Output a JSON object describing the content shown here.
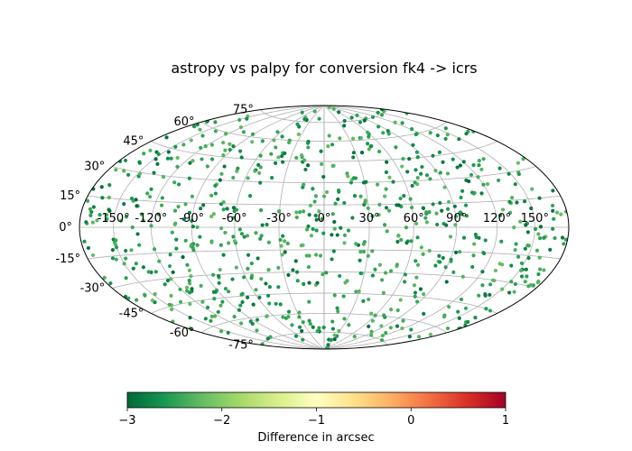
{
  "chart_data": {
    "type": "scatter",
    "projection": "aitoff-hammer",
    "title": "astropy vs palpy for conversion fk4 -> icrs",
    "grid": true,
    "lon_ticks": [
      -150,
      -120,
      -90,
      -60,
      -30,
      0,
      30,
      60,
      90,
      120,
      150
    ],
    "lon_tick_labels": [
      "-150°",
      "-120°",
      "-90°",
      "-60°",
      "-30°",
      "0°",
      "30°",
      "60°",
      "90°",
      "120°",
      "150°"
    ],
    "lat_ticks": [
      -75,
      -60,
      -45,
      -30,
      -15,
      0,
      15,
      30,
      45,
      60,
      75
    ],
    "lat_tick_labels": [
      "-75°",
      "-60°",
      "-45°",
      "-30°",
      "-15°",
      "0°",
      "15°",
      "30°",
      "45°",
      "60°",
      "75°"
    ],
    "colorbar": {
      "label": "Difference in arcsec",
      "range": [
        -3,
        1
      ],
      "ticks": [
        -3,
        -2,
        -1,
        0,
        1
      ],
      "tick_labels": [
        "−3",
        "−2",
        "−1",
        "0",
        "1"
      ],
      "colormap": "RdYlGn_r",
      "stops": [
        "#006837",
        "#1a9850",
        "#66bd63",
        "#a6d96a",
        "#d9ef8b",
        "#ffffbf",
        "#fee08b",
        "#fdae61",
        "#f46d43",
        "#d73027",
        "#a50026"
      ]
    },
    "series": [
      {
        "point_count": 800,
        "value_range": [
          -3.0,
          -2.2
        ],
        "points": [
          {
            "lon": -170,
            "lat": 10,
            "v": -2.8
          },
          {
            "lon": -160,
            "lat": 35,
            "v": -2.6
          },
          {
            "lon": -140,
            "lat": -20,
            "v": -2.5
          },
          {
            "lon": -120,
            "lat": 50,
            "v": -2.4
          },
          {
            "lon": -100,
            "lat": -45,
            "v": -2.5
          },
          {
            "lon": -80,
            "lat": 20,
            "v": -2.4
          },
          {
            "lon": -60,
            "lat": -10,
            "v": -2.5
          },
          {
            "lon": -40,
            "lat": 60,
            "v": -2.4
          },
          {
            "lon": -20,
            "lat": -30,
            "v": -2.7
          },
          {
            "lon": -5,
            "lat": 5,
            "v": -2.9
          },
          {
            "lon": 5,
            "lat": -5,
            "v": -2.9
          },
          {
            "lon": 20,
            "lat": 30,
            "v": -2.6
          },
          {
            "lon": 45,
            "lat": -35,
            "v": -2.4
          },
          {
            "lon": 70,
            "lat": 45,
            "v": -2.4
          },
          {
            "lon": 95,
            "lat": -15,
            "v": -2.4
          },
          {
            "lon": 120,
            "lat": 25,
            "v": -2.5
          },
          {
            "lon": 140,
            "lat": -50,
            "v": -2.6
          },
          {
            "lon": 160,
            "lat": 15,
            "v": -2.8
          },
          {
            "lon": 175,
            "lat": -5,
            "v": -2.9
          },
          {
            "lon": -175,
            "lat": -10,
            "v": -2.9
          }
        ]
      }
    ]
  }
}
